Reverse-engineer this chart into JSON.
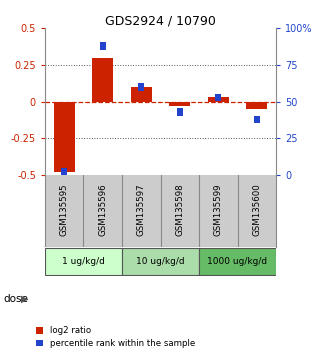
{
  "title": "GDS2924 / 10790",
  "samples": [
    "GSM135595",
    "GSM135596",
    "GSM135597",
    "GSM135598",
    "GSM135599",
    "GSM135600"
  ],
  "log2_ratio": [
    -0.48,
    0.3,
    0.1,
    -0.03,
    0.03,
    -0.05
  ],
  "percentile_rank": [
    2,
    88,
    60,
    43,
    53,
    38
  ],
  "dose_groups": [
    {
      "label": "1 ug/kg/d",
      "samples": [
        0,
        1
      ],
      "color": "#ccffcc"
    },
    {
      "label": "10 ug/kg/d",
      "samples": [
        2,
        3
      ],
      "color": "#aaddaa"
    },
    {
      "label": "1000 ug/kg/d",
      "samples": [
        4,
        5
      ],
      "color": "#66bb66"
    }
  ],
  "left_ylim": [
    -0.5,
    0.5
  ],
  "right_ylim": [
    0,
    100
  ],
  "left_yticks": [
    -0.5,
    -0.25,
    0,
    0.25,
    0.5
  ],
  "right_yticks": [
    0,
    25,
    50,
    75,
    100
  ],
  "right_yticklabels": [
    "0",
    "25",
    "50",
    "75",
    "100%"
  ],
  "red_color": "#cc2200",
  "blue_color": "#2244cc",
  "bar_width": 0.55,
  "bg_color": "#ffffff",
  "sample_label_bg": "#cccccc",
  "legend_red_label": "log2 ratio",
  "legend_blue_label": "percentile rank within the sample"
}
